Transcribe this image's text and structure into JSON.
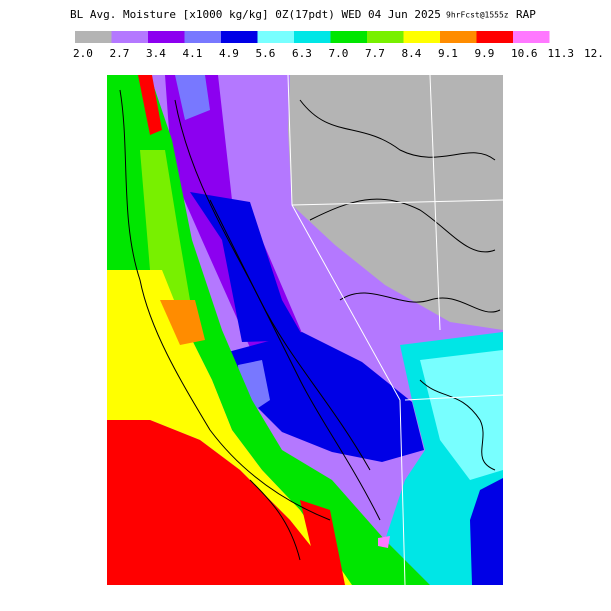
{
  "header": {
    "title": "BL Avg. Moisture [x1000 kg/kg] 0Z(17pdt) WED 04 Jun 2025",
    "forecast": "9hrFcst@1555z",
    "model": "RAP"
  },
  "colorbar": {
    "labels": [
      "2.0",
      "2.7",
      "3.4",
      "4.1",
      "4.9",
      "5.6",
      "6.3",
      "7.0",
      "7.7",
      "8.4",
      "9.1",
      "9.9",
      "10.6",
      "11.3",
      "12."
    ],
    "colors": [
      "#b4b4b4",
      "#b478ff",
      "#8c00f0",
      "#7878ff",
      "#0000e6",
      "#78ffff",
      "#00e6e6",
      "#00e600",
      "#78f000",
      "#ffff00",
      "#ff8c00",
      "#ff0000",
      "#ff78ff"
    ]
  }
}
